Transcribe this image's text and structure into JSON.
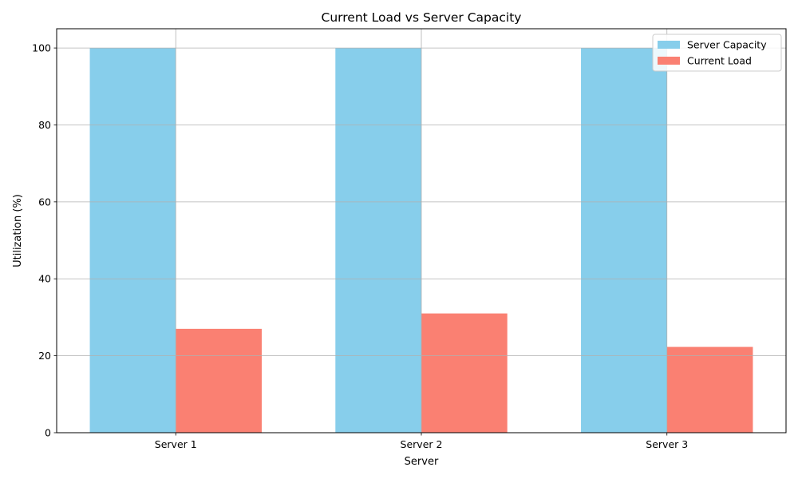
{
  "chart_data": {
    "type": "bar",
    "title": "Current Load vs Server Capacity",
    "xlabel": "Server",
    "ylabel": "Utilization (%)",
    "categories": [
      "Server 1",
      "Server 2",
      "Server 3"
    ],
    "series": [
      {
        "name": "Server Capacity",
        "values": [
          100,
          100,
          100
        ],
        "color": "#87ceeb"
      },
      {
        "name": "Current Load",
        "values": [
          27,
          31,
          22.3
        ],
        "color": "#fa8072"
      }
    ],
    "ylim": [
      0,
      105
    ],
    "yticks": [
      "0",
      "20",
      "40",
      "60",
      "80",
      "100"
    ],
    "grid": true,
    "legend": "top-right"
  }
}
